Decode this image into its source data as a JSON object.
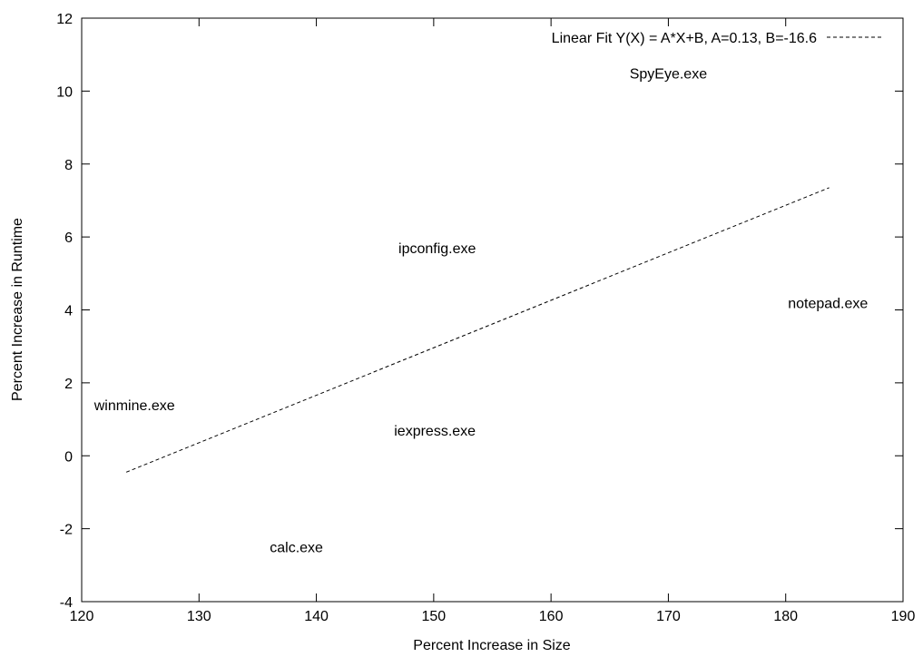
{
  "chart_data": {
    "type": "scatter",
    "title": "",
    "xlabel": "Percent Increase in Size",
    "ylabel": "Percent Increase in Runtime",
    "xlim": [
      120,
      190
    ],
    "ylim": [
      -4,
      12
    ],
    "xticks": [
      120,
      130,
      140,
      150,
      160,
      170,
      180,
      190
    ],
    "yticks": [
      -4,
      -2,
      0,
      2,
      4,
      6,
      8,
      10,
      12
    ],
    "grid": false,
    "legend_position": "top-right",
    "points": [
      {
        "label": "SpyEye.exe",
        "x": 170,
        "y": 10.5
      },
      {
        "label": "ipconfig.exe",
        "x": 150.3,
        "y": 5.7
      },
      {
        "label": "notepad.exe",
        "x": 183.6,
        "y": 4.2
      },
      {
        "label": "winmine.exe",
        "x": 124.5,
        "y": 1.4
      },
      {
        "label": "iexpress.exe",
        "x": 150.1,
        "y": 0.7
      },
      {
        "label": "calc.exe",
        "x": 138.3,
        "y": -2.5
      }
    ],
    "series": [
      {
        "name": "Linear Fit Y(X) = A*X+B, A=0.13, B=-16.6",
        "type": "line",
        "style": "dashed",
        "x": [
          123.8,
          183.7
        ],
        "y": [
          -0.45,
          7.35
        ]
      }
    ]
  }
}
